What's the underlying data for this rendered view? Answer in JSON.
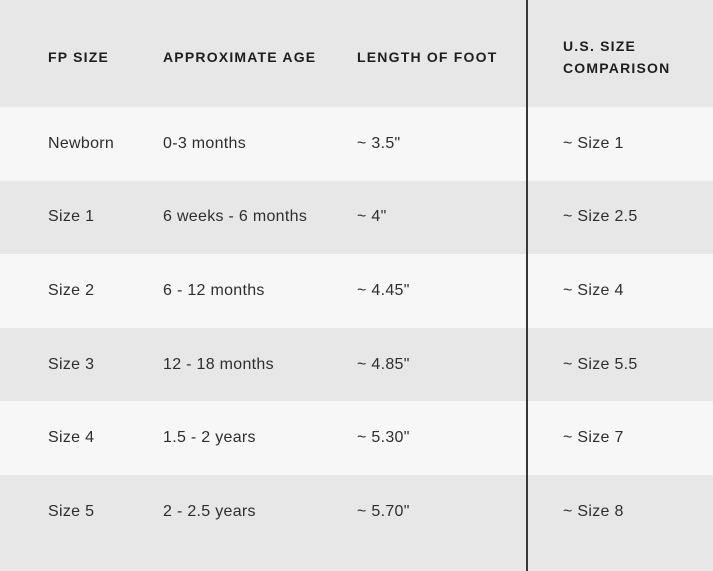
{
  "chart_data": {
    "type": "table",
    "title": "",
    "columns": [
      "FP SIZE",
      "APPROXIMATE AGE",
      "LENGTH OF FOOT",
      "U.S. SIZE COMPARISON"
    ],
    "rows": [
      [
        "Newborn",
        "0-3 months",
        "~ 3.5\"",
        "~ Size 1"
      ],
      [
        "Size 1",
        "6 weeks - 6 months",
        "~ 4\"",
        "~ Size 2.5"
      ],
      [
        "Size 2",
        "6 - 12 months",
        "~ 4.45\"",
        "~ Size 4"
      ],
      [
        "Size 3",
        "12 - 18 months",
        "~ 4.85\"",
        "~ Size 5.5"
      ],
      [
        "Size 4",
        "1.5 - 2 years",
        "~ 5.30\"",
        "~ Size 7"
      ],
      [
        "Size 5",
        "2 - 2.5 years",
        "~ 5.70\"",
        "~ Size 8"
      ]
    ],
    "layout": {
      "alternating_row_shading": true,
      "divider_before_last_column": true
    }
  },
  "colors": {
    "row_gray": "#e8e7e7",
    "row_light": "#f7f7f8",
    "divider": "#383838",
    "header_text": "#1e1e1e",
    "body_text": "#2e2e2e"
  }
}
